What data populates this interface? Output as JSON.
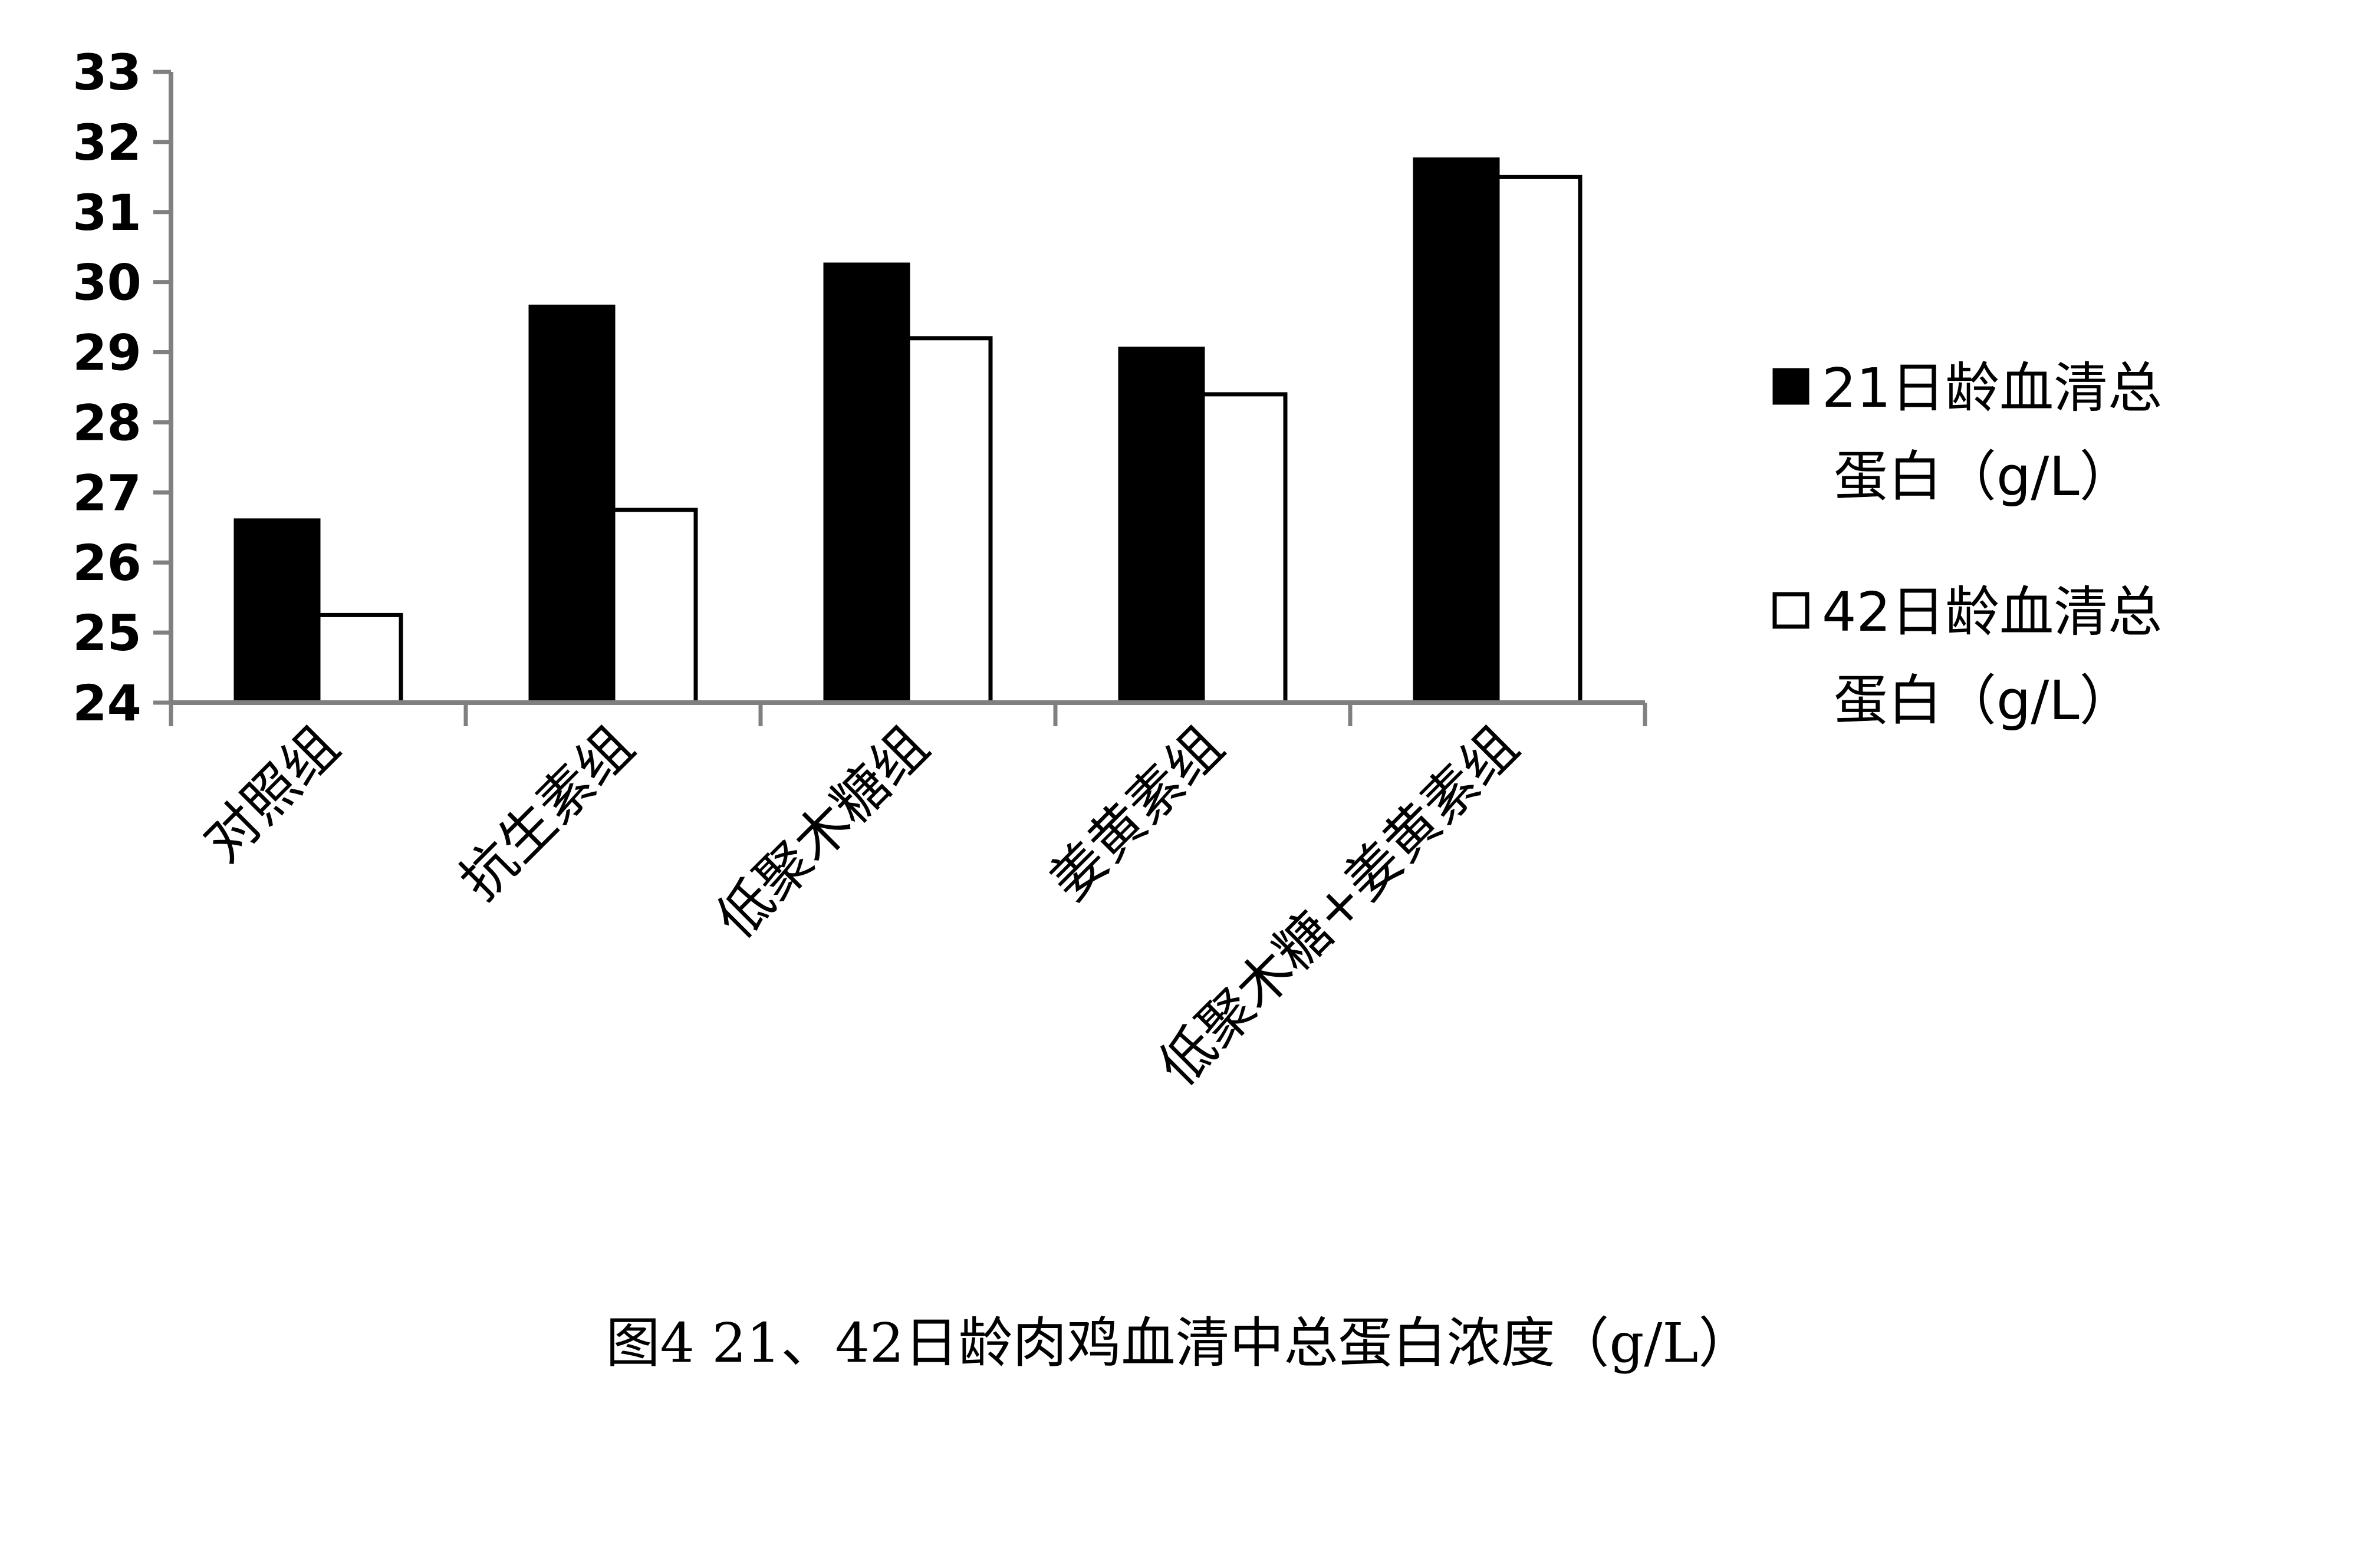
{
  "chart_data": {
    "type": "bar",
    "categories": [
      "对照组",
      "抗生素组",
      "低聚木糖组",
      "姜黄素组",
      "低聚木糖+姜黄素组"
    ],
    "series": [
      {
        "name_lines": [
          "21日龄血清总",
          "蛋白（g/L）"
        ],
        "values": [
          26.6,
          29.65,
          30.25,
          29.05,
          31.75
        ],
        "fill": "#000000"
      },
      {
        "name_lines": [
          "42日龄血清总",
          "蛋白（g/L）"
        ],
        "values": [
          25.25,
          26.75,
          29.2,
          28.4,
          31.5
        ],
        "fill": "#ffffff"
      }
    ],
    "ylim": [
      24,
      33
    ],
    "yticks": [
      "24",
      "25",
      "26",
      "27",
      "28",
      "29",
      "30",
      "31",
      "32",
      "33"
    ],
    "grid": false,
    "legend_position": "right",
    "caption": "图4 21、42日龄肉鸡血清中总蛋白浓度（g/L）"
  }
}
